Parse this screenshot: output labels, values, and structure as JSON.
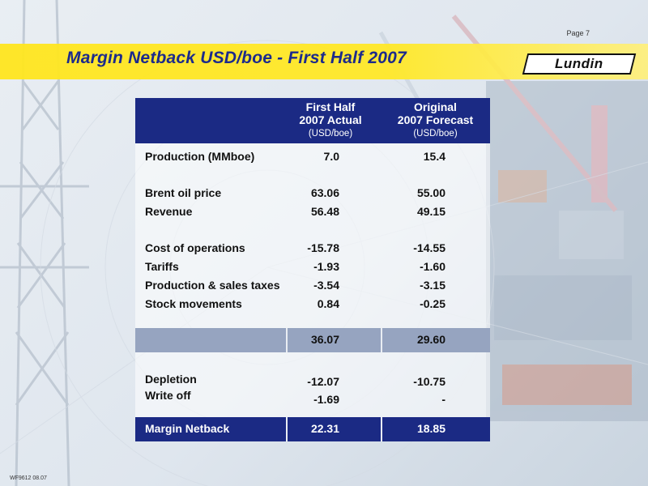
{
  "header": {
    "page_label": "Page 7",
    "title": "Margin Netback USD/boe - First Half 2007",
    "logo_text": "Lundin"
  },
  "table": {
    "columns": [
      {
        "line1": "First Half",
        "line2": "2007 Actual",
        "unit": "(USD/boe)"
      },
      {
        "line1": "Original",
        "line2": "2007 Forecast",
        "unit": "(USD/boe)"
      }
    ],
    "rows": [
      {
        "label": "Production (MMboe)",
        "actual": "7.0",
        "forecast": "15.4"
      },
      {
        "label": "Brent oil price",
        "actual": "63.06",
        "forecast": "55.00"
      },
      {
        "label": "Revenue",
        "actual": "56.48",
        "forecast": "49.15"
      },
      {
        "label": "Cost of operations",
        "actual": "-15.78",
        "forecast": "-14.55"
      },
      {
        "label": "Tariffs",
        "actual": "-1.93",
        "forecast": "-1.60"
      },
      {
        "label": "Production & sales taxes",
        "actual": "-3.54",
        "forecast": "-3.15"
      },
      {
        "label": "Stock movements",
        "actual": "0.84",
        "forecast": "-0.25"
      }
    ],
    "subtotal": {
      "actual": "36.07",
      "forecast": "29.60"
    },
    "rows2": [
      {
        "label": "Depletion",
        "actual": "-12.07",
        "forecast": "-10.75"
      },
      {
        "label": "Write off",
        "actual": "-1.69",
        "forecast": "-"
      }
    ],
    "total": {
      "label": "Margin Netback",
      "actual": "22.31",
      "forecast": "18.85"
    }
  },
  "footer": {
    "code": "WF9612 08.07"
  },
  "colors": {
    "navy": "#1b2a84",
    "yellow": "#ffe61e",
    "subtotal": "#96a4c0"
  }
}
